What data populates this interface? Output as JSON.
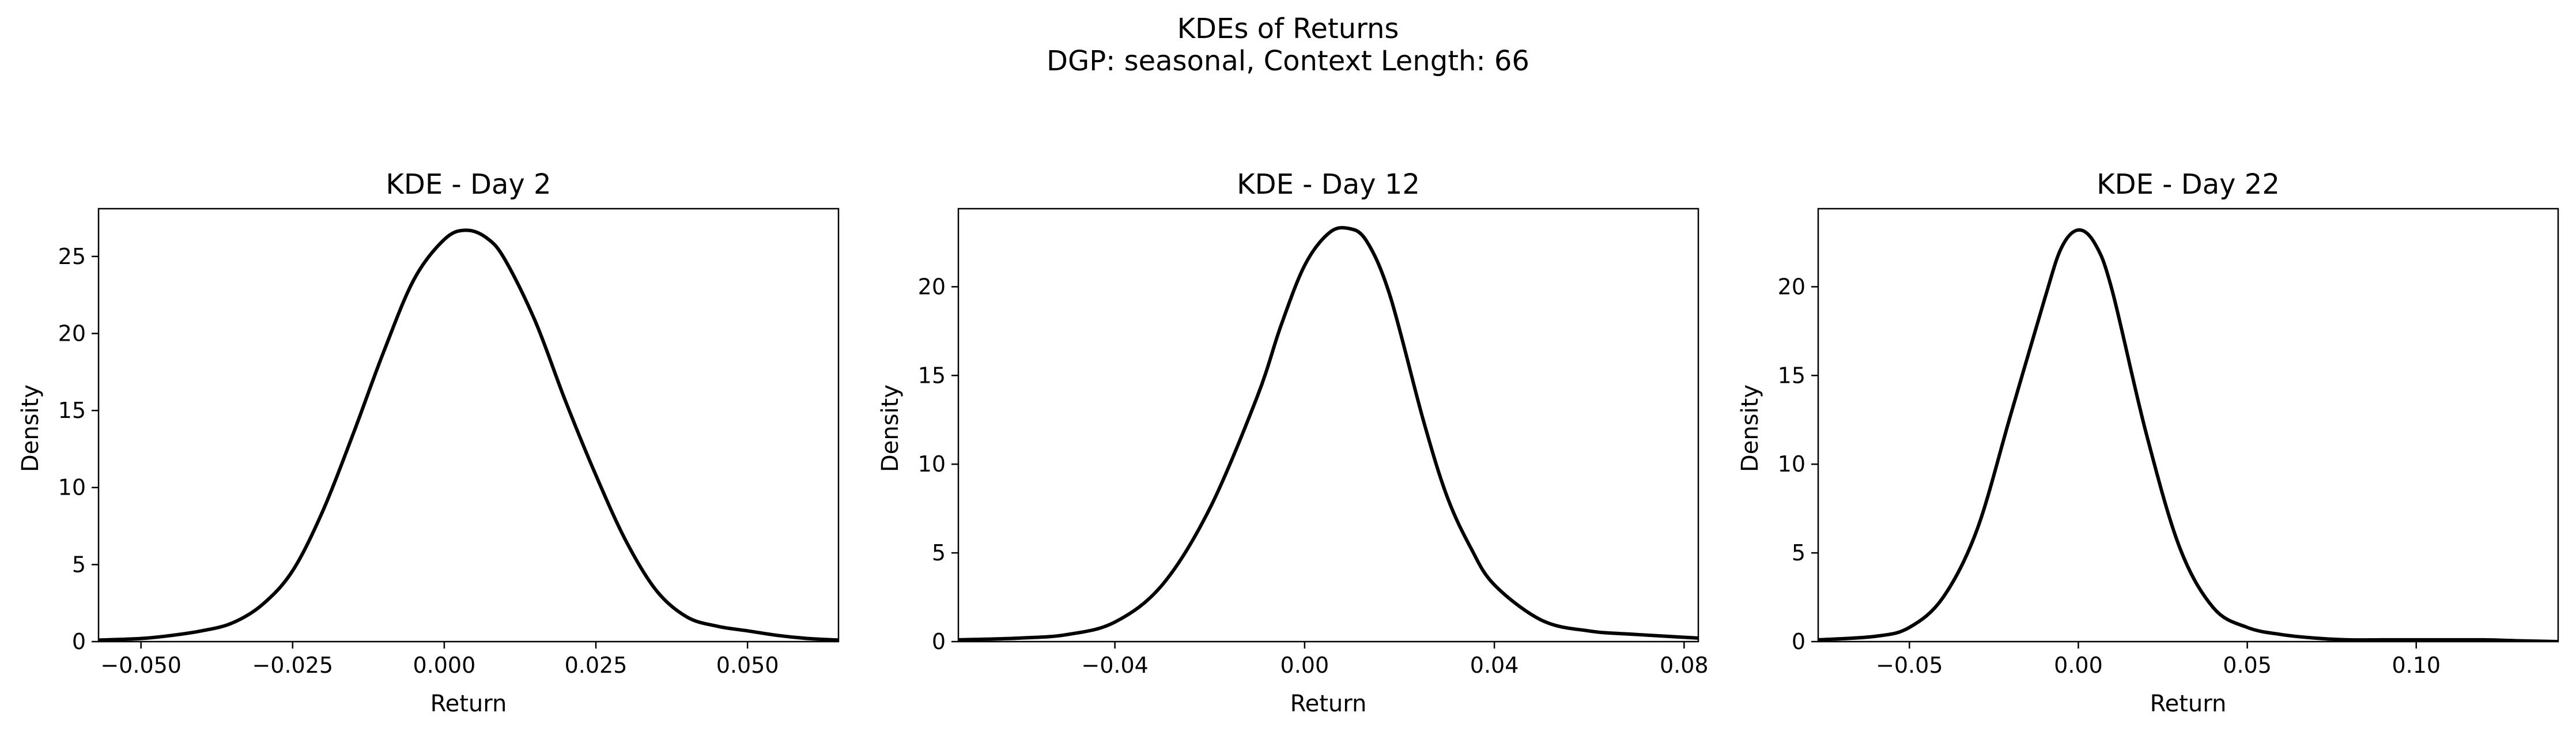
{
  "suptitle": [
    "KDEs of Returns",
    "DGP: seasonal, Context Length: 66"
  ],
  "chart_data": [
    {
      "type": "line",
      "title": "KDE - Day 2",
      "xlabel": "Return",
      "ylabel": "Density",
      "xlim": [
        -0.057,
        0.065
      ],
      "ylim": [
        0,
        28.1
      ],
      "xticks": [
        -0.05,
        -0.025,
        0.0,
        0.025,
        0.05
      ],
      "xtick_labels": [
        "−0.050",
        "−0.025",
        "0.000",
        "0.025",
        "0.050"
      ],
      "yticks": [
        0,
        5,
        10,
        15,
        20,
        25
      ],
      "ytick_labels": [
        "0",
        "5",
        "10",
        "15",
        "20",
        "25"
      ],
      "series": [
        {
          "color": "#000000",
          "x": [
            -0.057,
            -0.05,
            -0.045,
            -0.04,
            -0.035,
            -0.03,
            -0.025,
            -0.02,
            -0.015,
            -0.01,
            -0.005,
            0.0,
            0.0035,
            0.007,
            0.01,
            0.015,
            0.02,
            0.025,
            0.03,
            0.035,
            0.04,
            0.045,
            0.05,
            0.055,
            0.06,
            0.065
          ],
          "y": [
            0.1,
            0.2,
            0.4,
            0.7,
            1.2,
            2.4,
            4.6,
            8.5,
            13.5,
            18.8,
            23.5,
            26.1,
            26.7,
            26.2,
            24.8,
            20.8,
            15.6,
            10.8,
            6.5,
            3.3,
            1.6,
            1.0,
            0.7,
            0.4,
            0.2,
            0.1
          ]
        }
      ]
    },
    {
      "type": "line",
      "title": "KDE - Day 12",
      "xlabel": "Return",
      "ylabel": "Density",
      "xlim": [
        -0.073,
        0.083
      ],
      "ylim": [
        0,
        24.4
      ],
      "xticks": [
        -0.04,
        0.0,
        0.04,
        0.08
      ],
      "xtick_labels": [
        "−0.04",
        "0.00",
        "0.04",
        "0.08"
      ],
      "yticks": [
        0,
        5,
        10,
        15,
        20
      ],
      "ytick_labels": [
        "0",
        "5",
        "10",
        "15",
        "20"
      ],
      "series": [
        {
          "color": "#000000",
          "x": [
            -0.073,
            -0.06,
            -0.05,
            -0.04,
            -0.03,
            -0.02,
            -0.01,
            -0.005,
            0.0,
            0.005,
            0.009,
            0.013,
            0.018,
            0.025,
            0.03,
            0.035,
            0.04,
            0.05,
            0.06,
            0.07,
            0.083
          ],
          "y": [
            0.1,
            0.2,
            0.4,
            1.1,
            3.2,
            7.5,
            13.8,
            17.8,
            21.2,
            23.0,
            23.3,
            22.6,
            19.5,
            12.5,
            8.2,
            5.3,
            3.2,
            1.2,
            0.6,
            0.4,
            0.2
          ]
        }
      ]
    },
    {
      "type": "line",
      "title": "KDE - Day 22",
      "xlabel": "Return",
      "ylabel": "Density",
      "xlim": [
        -0.077,
        0.142
      ],
      "ylim": [
        0,
        24.4
      ],
      "xticks": [
        -0.05,
        0.0,
        0.05,
        0.1
      ],
      "xtick_labels": [
        "−0.05",
        "0.00",
        "0.05",
        "0.10"
      ],
      "yticks": [
        0,
        5,
        10,
        15,
        20
      ],
      "ytick_labels": [
        "0",
        "5",
        "10",
        "15",
        "20"
      ],
      "series": [
        {
          "color": "#000000",
          "x": [
            -0.077,
            -0.06,
            -0.05,
            -0.04,
            -0.03,
            -0.02,
            -0.01,
            -0.005,
            0.0,
            0.005,
            0.01,
            0.02,
            0.03,
            0.04,
            0.05,
            0.06,
            0.07,
            0.08,
            0.09,
            0.1,
            0.11,
            0.12,
            0.13,
            0.142
          ],
          "y": [
            0.1,
            0.3,
            0.8,
            2.5,
            6.3,
            12.8,
            19.3,
            22.2,
            23.2,
            22.4,
            19.8,
            11.8,
            5.3,
            1.9,
            0.8,
            0.4,
            0.2,
            0.1,
            0.1,
            0.1,
            0.1,
            0.1,
            0.05,
            0.0
          ]
        }
      ]
    }
  ]
}
